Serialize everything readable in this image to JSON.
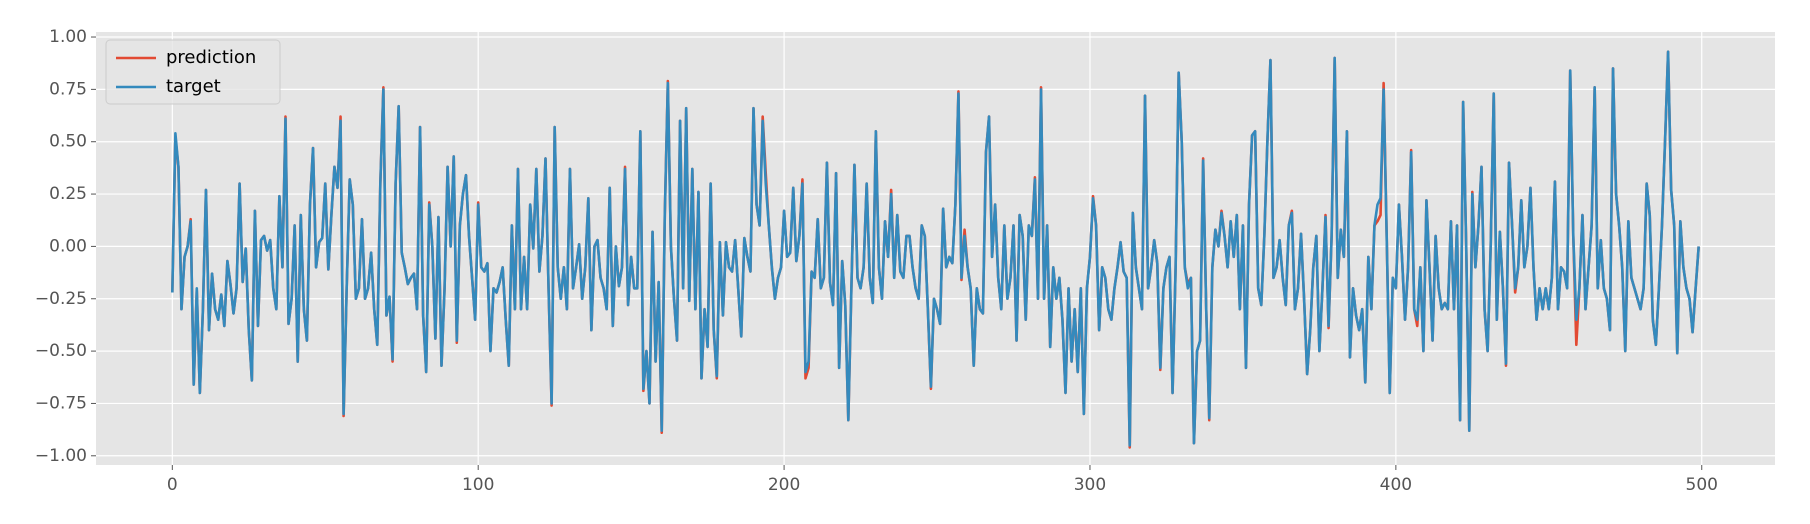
{
  "chart_data": {
    "type": "line",
    "xlim": [
      -24.95,
      523.95
    ],
    "ylim": [
      -1.044,
      1.024
    ],
    "xticks": [
      0,
      100,
      200,
      300,
      400,
      500
    ],
    "yticks": [
      {
        "value": -1,
        "label": "−1.00"
      },
      {
        "value": -0.75,
        "label": "−0.75"
      },
      {
        "value": -0.5,
        "label": "−0.50"
      },
      {
        "value": -0.25,
        "label": "−0.25"
      },
      {
        "value": 0,
        "label": "0.00"
      },
      {
        "value": 0.25,
        "label": "0.25"
      },
      {
        "value": 0.5,
        "label": "0.50"
      },
      {
        "value": 0.75,
        "label": "0.75"
      },
      {
        "value": 1,
        "label": "1.00"
      }
    ],
    "grid": true,
    "legend": "upper left",
    "series": [
      {
        "name": "prediction",
        "color": "#E24A33",
        "values": [
          -0.22,
          0.52,
          0.38,
          -0.3,
          -0.05,
          0,
          0.13,
          -0.66,
          -0.21,
          -0.7,
          -0.3,
          0.27,
          -0.4,
          -0.13,
          -0.3,
          -0.35,
          -0.23,
          -0.38,
          -0.07,
          -0.18,
          -0.32,
          -0.2,
          0.3,
          -0.17,
          -0.01,
          -0.4,
          -0.64,
          0.17,
          -0.38,
          0.03,
          0.05,
          -0.02,
          0.03,
          -0.2,
          -0.3,
          0.24,
          -0.1,
          0.62,
          -0.37,
          -0.25,
          0.1,
          -0.55,
          0.15,
          -0.3,
          -0.45,
          0.2,
          0.47,
          -0.1,
          0.02,
          0.04,
          0.3,
          -0.11,
          0.15,
          0.38,
          0.28,
          0.62,
          -0.81,
          -0.2,
          0.32,
          0.2,
          -0.25,
          -0.2,
          0.13,
          -0.25,
          -0.2,
          -0.03,
          -0.3,
          -0.47,
          0.3,
          0.76,
          -0.33,
          -0.24,
          -0.55,
          0.3,
          0.67,
          -0.03,
          -0.1,
          -0.18,
          -0.15,
          -0.13,
          -0.3,
          0.57,
          -0.33,
          -0.6,
          0.21,
          0,
          -0.44,
          0.14,
          -0.57,
          -0.2,
          0.38,
          0,
          0.43,
          -0.46,
          0.1,
          0.25,
          0.34,
          0.05,
          -0.15,
          -0.35,
          0.21,
          -0.1,
          -0.12,
          -0.08,
          -0.5,
          -0.2,
          -0.22,
          -0.17,
          -0.1,
          -0.35,
          -0.57,
          0.1,
          -0.3,
          0.37,
          -0.3,
          -0.05,
          -0.3,
          0.2,
          -0.01,
          0.37,
          -0.12,
          0.05,
          0.42,
          -0.2,
          -0.76,
          0.57,
          -0.1,
          -0.25,
          -0.1,
          -0.3,
          0.37,
          -0.2,
          -0.1,
          0.01,
          -0.25,
          -0.1,
          0.23,
          -0.4,
          0,
          0.03,
          -0.15,
          -0.2,
          -0.3,
          0.28,
          -0.38,
          0,
          -0.19,
          -0.1,
          0.38,
          -0.28,
          -0.05,
          -0.2,
          -0.2,
          0.55,
          -0.69,
          -0.5,
          -0.75,
          0.07,
          -0.55,
          -0.17,
          -0.89,
          0.15,
          0.79,
          0,
          -0.25,
          -0.45,
          0.6,
          -0.2,
          0.66,
          -0.26,
          0.37,
          -0.3,
          0.26,
          -0.63,
          -0.3,
          -0.48,
          0.3,
          -0.4,
          -0.63,
          0.02,
          -0.33,
          0.02,
          -0.1,
          -0.12,
          0.03,
          -0.2,
          -0.43,
          0.04,
          -0.05,
          -0.12,
          0.66,
          0.2,
          0.1,
          0.62,
          0.35,
          0.1,
          -0.1,
          -0.25,
          -0.15,
          -0.1,
          0.17,
          -0.05,
          -0.03,
          0.28,
          -0.07,
          0.05,
          0.32,
          -0.63,
          -0.58,
          -0.12,
          -0.15,
          0.13,
          -0.2,
          -0.15,
          0.4,
          -0.17,
          -0.28,
          0.35,
          -0.58,
          -0.07,
          -0.28,
          -0.83,
          -0.2,
          0.39,
          -0.15,
          -0.2,
          -0.1,
          0.3,
          -0.15,
          -0.27,
          0.55,
          -0.1,
          -0.25,
          0.12,
          -0.05,
          0.27,
          -0.15,
          0.15,
          -0.12,
          -0.15,
          0.05,
          0.05,
          -0.1,
          -0.2,
          -0.25,
          0.1,
          0.05,
          -0.3,
          -0.68,
          -0.25,
          -0.3,
          -0.37,
          0.18,
          -0.1,
          -0.05,
          -0.08,
          0.2,
          0.74,
          -0.16,
          0.08,
          -0.1,
          -0.2,
          -0.57,
          -0.2,
          -0.3,
          -0.32,
          0.45,
          0.62,
          -0.05,
          0.2,
          -0.15,
          -0.3,
          0.1,
          -0.25,
          -0.15,
          0.1,
          -0.45,
          0.15,
          0.05,
          -0.35,
          0.1,
          0.05,
          0.33,
          -0.25,
          0.76,
          -0.25,
          0.1,
          -0.48,
          -0.1,
          -0.25,
          -0.15,
          -0.35,
          -0.7,
          -0.2,
          -0.55,
          -0.3,
          -0.6,
          -0.2,
          -0.8,
          -0.2,
          -0.05,
          0.24,
          0.1,
          -0.4,
          -0.1,
          -0.15,
          -0.3,
          -0.35,
          -0.2,
          -0.1,
          0.02,
          -0.12,
          -0.15,
          -0.96,
          0.16,
          -0.1,
          -0.2,
          -0.3,
          0.72,
          -0.2,
          -0.1,
          0.03,
          -0.08,
          -0.59,
          -0.2,
          -0.1,
          -0.05,
          -0.7,
          -0.1,
          0.83,
          0.5,
          -0.1,
          -0.18,
          -0.15,
          -0.94,
          -0.5,
          -0.45,
          0.42,
          -0.3,
          -0.83,
          -0.1,
          0.08,
          0,
          0.17,
          0.05,
          -0.1,
          0.12,
          -0.05,
          0.15,
          -0.3,
          0.1,
          -0.58,
          0.2,
          0.53,
          0.55,
          -0.2,
          -0.28,
          0.05,
          0.5,
          0.89,
          -0.15,
          -0.1,
          0.03,
          -0.15,
          -0.28,
          0.1,
          0.17,
          -0.3,
          -0.2,
          0.06,
          -0.25,
          -0.61,
          -0.4,
          -0.1,
          0.05,
          -0.5,
          -0.2,
          0.15,
          -0.39,
          0.05,
          0.9,
          -0.15,
          0.08,
          -0.05,
          0.55,
          -0.53,
          -0.2,
          -0.33,
          -0.4,
          -0.3,
          -0.65,
          -0.05,
          -0.3,
          0.1,
          0.12,
          0.15,
          0.78,
          0.05,
          -0.7,
          -0.15,
          -0.2,
          0.2,
          -0.05,
          -0.35,
          -0.1,
          0.46,
          -0.3,
          -0.38,
          -0.1,
          -0.5,
          0.22,
          -0.1,
          -0.45,
          0.05,
          -0.2,
          -0.3,
          -0.27,
          -0.3,
          0.12,
          -0.3,
          0.1,
          -0.83,
          0.69,
          0,
          -0.88,
          0.26,
          -0.1,
          0.1,
          0.38,
          -0.3,
          -0.5,
          0,
          0.73,
          -0.35,
          0.07,
          -0.2,
          -0.57,
          0.4,
          0.1,
          -0.22,
          -0.1,
          0.22,
          -0.1,
          0,
          0.28,
          -0.1,
          -0.35,
          -0.2,
          -0.3,
          -0.2,
          -0.3,
          -0.15,
          0.31,
          -0.3,
          -0.1,
          -0.12,
          -0.2,
          0.84,
          0.05,
          -0.47,
          -0.2,
          0.15,
          -0.3,
          -0.1,
          0.1,
          0.76,
          -0.2,
          0.03,
          -0.2,
          -0.25,
          -0.4,
          0.85,
          0.25,
          0.1,
          -0.1,
          -0.5,
          0.12,
          -0.15,
          -0.2,
          -0.25,
          -0.3,
          -0.2,
          0.3,
          0.15,
          -0.35,
          -0.47,
          -0.2,
          0.1,
          0.5,
          0.93,
          0.27,
          0.1,
          -0.51,
          0.12,
          -0.1,
          -0.2,
          -0.25,
          -0.41,
          -0.2,
          0
        ]
      },
      {
        "name": "target",
        "color": "#348ABD",
        "values": [
          -0.22,
          0.54,
          0.38,
          -0.3,
          -0.05,
          0,
          0.12,
          -0.66,
          -0.2,
          -0.7,
          -0.3,
          0.27,
          -0.4,
          -0.13,
          -0.3,
          -0.35,
          -0.23,
          -0.38,
          -0.07,
          -0.18,
          -0.32,
          -0.2,
          0.3,
          -0.17,
          -0.01,
          -0.4,
          -0.64,
          0.17,
          -0.38,
          0.03,
          0.05,
          -0.02,
          0.03,
          -0.2,
          -0.3,
          0.24,
          -0.1,
          0.61,
          -0.37,
          -0.25,
          0.1,
          -0.55,
          0.15,
          -0.3,
          -0.45,
          0.2,
          0.47,
          -0.1,
          0.02,
          0.04,
          0.3,
          -0.11,
          0.15,
          0.38,
          0.28,
          0.6,
          -0.8,
          -0.2,
          0.32,
          0.2,
          -0.25,
          -0.2,
          0.13,
          -0.25,
          -0.2,
          -0.03,
          -0.3,
          -0.47,
          0.3,
          0.75,
          -0.33,
          -0.24,
          -0.54,
          0.3,
          0.67,
          -0.03,
          -0.1,
          -0.18,
          -0.15,
          -0.13,
          -0.3,
          0.57,
          -0.33,
          -0.6,
          0.2,
          0,
          -0.44,
          0.14,
          -0.57,
          -0.2,
          0.38,
          0,
          0.43,
          -0.45,
          0.1,
          0.25,
          0.34,
          0.05,
          -0.15,
          -0.35,
          0.2,
          -0.1,
          -0.12,
          -0.08,
          -0.5,
          -0.2,
          -0.22,
          -0.17,
          -0.1,
          -0.35,
          -0.57,
          0.1,
          -0.3,
          0.37,
          -0.3,
          -0.05,
          -0.3,
          0.2,
          -0.01,
          0.37,
          -0.12,
          0.05,
          0.42,
          -0.2,
          -0.75,
          0.57,
          -0.1,
          -0.25,
          -0.1,
          -0.3,
          0.37,
          -0.2,
          -0.1,
          0.01,
          -0.25,
          -0.1,
          0.23,
          -0.4,
          0,
          0.03,
          -0.15,
          -0.2,
          -0.3,
          0.28,
          -0.38,
          0,
          -0.19,
          -0.1,
          0.37,
          -0.28,
          -0.05,
          -0.2,
          -0.2,
          0.55,
          -0.68,
          -0.5,
          -0.75,
          0.07,
          -0.55,
          -0.17,
          -0.88,
          0.15,
          0.78,
          0,
          -0.25,
          -0.45,
          0.6,
          -0.2,
          0.66,
          -0.26,
          0.37,
          -0.3,
          0.26,
          -0.63,
          -0.3,
          -0.48,
          0.3,
          -0.4,
          -0.62,
          0.02,
          -0.33,
          0.02,
          -0.1,
          -0.12,
          0.03,
          -0.2,
          -0.43,
          0.04,
          -0.05,
          -0.12,
          0.66,
          0.2,
          0.1,
          0.6,
          0.3,
          0.1,
          -0.1,
          -0.25,
          -0.15,
          -0.1,
          0.17,
          -0.05,
          -0.03,
          0.28,
          -0.07,
          0.05,
          0.3,
          -0.6,
          -0.55,
          -0.12,
          -0.15,
          0.13,
          -0.2,
          -0.15,
          0.4,
          -0.17,
          -0.28,
          0.35,
          -0.58,
          -0.07,
          -0.28,
          -0.83,
          -0.2,
          0.39,
          -0.15,
          -0.2,
          -0.1,
          0.3,
          -0.15,
          -0.27,
          0.55,
          -0.1,
          -0.25,
          0.12,
          -0.05,
          0.25,
          -0.15,
          0.15,
          -0.12,
          -0.15,
          0.05,
          0.05,
          -0.1,
          -0.2,
          -0.25,
          0.1,
          0.05,
          -0.3,
          -0.67,
          -0.25,
          -0.3,
          -0.37,
          0.18,
          -0.1,
          -0.05,
          -0.08,
          0.2,
          0.73,
          -0.15,
          0.05,
          -0.1,
          -0.2,
          -0.57,
          -0.2,
          -0.3,
          -0.32,
          0.45,
          0.62,
          -0.05,
          0.2,
          -0.15,
          -0.3,
          0.1,
          -0.25,
          -0.15,
          0.1,
          -0.45,
          0.15,
          0.05,
          -0.35,
          0.1,
          0.05,
          0.32,
          -0.25,
          0.75,
          -0.25,
          0.1,
          -0.48,
          -0.1,
          -0.25,
          -0.15,
          -0.35,
          -0.7,
          -0.2,
          -0.55,
          -0.3,
          -0.6,
          -0.2,
          -0.8,
          -0.2,
          -0.05,
          0.23,
          0.1,
          -0.4,
          -0.1,
          -0.15,
          -0.3,
          -0.35,
          -0.2,
          -0.1,
          0.02,
          -0.12,
          -0.15,
          -0.95,
          0.16,
          -0.1,
          -0.2,
          -0.3,
          0.72,
          -0.2,
          -0.1,
          0.03,
          -0.08,
          -0.58,
          -0.2,
          -0.1,
          -0.05,
          -0.7,
          -0.1,
          0.83,
          0.5,
          -0.1,
          -0.2,
          -0.15,
          -0.94,
          -0.5,
          -0.45,
          0.41,
          -0.3,
          -0.82,
          -0.1,
          0.08,
          0,
          0.16,
          0.05,
          -0.1,
          0.12,
          -0.05,
          0.15,
          -0.3,
          0.1,
          -0.58,
          0.2,
          0.53,
          0.55,
          -0.2,
          -0.28,
          0.05,
          0.5,
          0.89,
          -0.15,
          -0.1,
          0.03,
          -0.15,
          -0.28,
          0.1,
          0.16,
          -0.3,
          -0.2,
          0.06,
          -0.25,
          -0.61,
          -0.4,
          -0.1,
          0.05,
          -0.5,
          -0.2,
          0.14,
          -0.38,
          0.05,
          0.9,
          -0.15,
          0.08,
          -0.05,
          0.55,
          -0.53,
          -0.2,
          -0.33,
          -0.4,
          -0.3,
          -0.65,
          -0.05,
          -0.3,
          0.1,
          0.2,
          0.23,
          0.75,
          0.05,
          -0.7,
          -0.15,
          -0.2,
          0.2,
          -0.05,
          -0.35,
          -0.1,
          0.45,
          -0.3,
          -0.35,
          -0.1,
          -0.5,
          0.22,
          -0.1,
          -0.45,
          0.05,
          -0.2,
          -0.3,
          -0.27,
          -0.3,
          0.12,
          -0.3,
          0.1,
          -0.83,
          0.69,
          0,
          -0.88,
          0.25,
          -0.1,
          0.1,
          0.38,
          -0.3,
          -0.5,
          0,
          0.73,
          -0.35,
          0.07,
          -0.2,
          -0.56,
          0.4,
          0.1,
          -0.2,
          -0.1,
          0.22,
          -0.1,
          0,
          0.28,
          -0.1,
          -0.35,
          -0.2,
          -0.3,
          -0.2,
          -0.3,
          -0.15,
          0.31,
          -0.3,
          -0.1,
          -0.12,
          -0.2,
          0.84,
          0.05,
          -0.35,
          -0.2,
          0.15,
          -0.3,
          -0.1,
          0.1,
          0.76,
          -0.2,
          0.03,
          -0.2,
          -0.25,
          -0.4,
          0.85,
          0.25,
          0.1,
          -0.1,
          -0.5,
          0.12,
          -0.15,
          -0.2,
          -0.25,
          -0.3,
          -0.2,
          0.3,
          0.15,
          -0.35,
          -0.47,
          -0.2,
          0.1,
          0.5,
          0.93,
          0.27,
          0.1,
          -0.51,
          0.12,
          -0.1,
          -0.2,
          -0.25,
          -0.41,
          -0.2,
          0
        ]
      }
    ]
  }
}
